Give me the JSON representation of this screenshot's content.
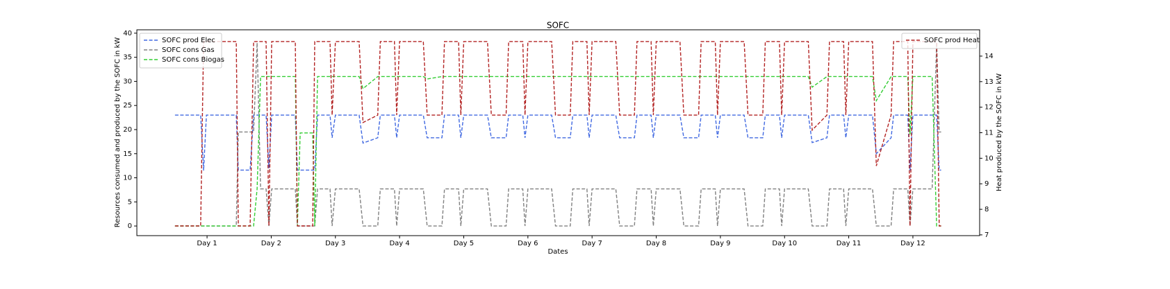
{
  "chart_data": {
    "type": "line",
    "title": "SOFC",
    "xlabel": "Dates",
    "ylabel": "Resources consumed and produced by the SOFC in kW",
    "y2label": "Heat produced by the SOFC in kW",
    "x": [
      0.5,
      0.9,
      0.946,
      0.99,
      1.455,
      1.487,
      1.671,
      1.725,
      1.78,
      1.834,
      1.92,
      1.964,
      2.007,
      2.375,
      2.408,
      2.451,
      2.646,
      2.678,
      2.722,
      2.916,
      2.949,
      3,
      3.37,
      3.43,
      3.66,
      3.7,
      3.92,
      3.955,
      4,
      4.37,
      4.43,
      4.66,
      4.7,
      4.92,
      4.955,
      5,
      5.37,
      5.43,
      5.66,
      5.7,
      5.92,
      5.955,
      6,
      6.37,
      6.43,
      6.66,
      6.7,
      6.92,
      6.955,
      7,
      7.37,
      7.43,
      7.66,
      7.7,
      7.92,
      7.955,
      8,
      8.37,
      8.43,
      8.66,
      8.7,
      8.92,
      8.955,
      9,
      9.37,
      9.43,
      9.66,
      9.7,
      9.92,
      9.955,
      10,
      10.37,
      10.43,
      10.66,
      10.7,
      10.92,
      10.955,
      11,
      11.37,
      11.43,
      11.66,
      11.7,
      11.92,
      11.955,
      12,
      12.3,
      12.37,
      12.41,
      12.44
    ],
    "series": [
      {
        "name": "SOFC prod Elec",
        "color": "#4169e1",
        "axis": "y",
        "values": [
          23,
          23,
          11.5,
          23,
          23,
          11.6,
          11.6,
          23,
          23,
          23,
          23,
          12,
          23,
          23,
          11.6,
          11.6,
          11.6,
          11.6,
          23,
          23,
          18.3,
          23,
          23,
          17.2,
          18.3,
          23,
          23,
          18.3,
          23,
          23,
          18.3,
          18.3,
          23,
          23,
          18.3,
          23,
          23,
          18.3,
          18.3,
          23,
          23,
          18.3,
          23,
          23,
          18.3,
          18.3,
          23,
          23,
          18.3,
          23,
          23,
          18.3,
          18.3,
          23,
          23,
          18.3,
          23,
          23,
          18.3,
          18.3,
          23,
          23,
          18.3,
          23,
          23,
          18.3,
          18.3,
          23,
          23,
          18.3,
          23,
          23,
          17.3,
          18.3,
          23,
          23,
          18.3,
          23,
          23,
          15,
          18.3,
          23,
          23,
          11.5,
          23,
          23,
          23,
          11.6,
          11.6
        ]
      },
      {
        "name": "SOFC cons Gas",
        "color": "#808080",
        "axis": "y",
        "values": [
          0,
          0,
          0,
          0,
          0,
          19.5,
          19.5,
          19.5,
          38,
          7.7,
          7.7,
          0,
          7.7,
          7.7,
          0,
          0,
          0,
          0,
          7.7,
          7.7,
          0,
          7.7,
          7.7,
          0,
          0,
          7.7,
          7.7,
          0,
          7.7,
          7.7,
          0,
          0,
          7.7,
          7.7,
          0,
          7.7,
          7.7,
          0,
          0,
          7.7,
          7.7,
          0,
          7.7,
          7.7,
          0,
          0,
          7.7,
          7.7,
          0,
          7.7,
          7.7,
          0,
          0,
          7.7,
          7.7,
          0,
          7.7,
          7.7,
          0,
          0,
          7.7,
          7.7,
          0,
          7.7,
          7.7,
          0,
          0,
          7.7,
          7.7,
          0,
          7.7,
          7.7,
          0,
          0,
          7.7,
          7.7,
          0,
          7.7,
          7.7,
          0,
          0,
          7.7,
          7.7,
          0,
          7.7,
          7.7,
          38,
          19.5,
          19.5
        ]
      },
      {
        "name": "SOFC cons Biogas",
        "color": "#32cd32",
        "axis": "y",
        "values": [
          0,
          0,
          0,
          0,
          0,
          0,
          0,
          0,
          7.7,
          31,
          31,
          31,
          31,
          31,
          0,
          19.3,
          19.3,
          0,
          31,
          31,
          31,
          31,
          31,
          28.5,
          31,
          31,
          31,
          31,
          31,
          31,
          30.5,
          31,
          31,
          31,
          31,
          31,
          31,
          31,
          31,
          31,
          31,
          31,
          31,
          31,
          31,
          31,
          31,
          31,
          31,
          31,
          31,
          31,
          31,
          31,
          31,
          31,
          31,
          31,
          31,
          31,
          31,
          31,
          31,
          31,
          31,
          31,
          31,
          31,
          31,
          31,
          31,
          31,
          28.8,
          31,
          31,
          31,
          31,
          31,
          31,
          26,
          31,
          31,
          31,
          19,
          31,
          31,
          0,
          0,
          0
        ]
      },
      {
        "name": "SOFC prod Heat",
        "color": "#b22222",
        "axis": "y2",
        "values": [
          7.35,
          7.35,
          14.57,
          14.57,
          14.57,
          7.35,
          7.35,
          14.57,
          14.57,
          14.57,
          14.57,
          7.35,
          14.57,
          14.57,
          7.35,
          7.35,
          7.35,
          14.57,
          14.57,
          14.57,
          11.69,
          14.57,
          14.57,
          11.4,
          11.69,
          14.57,
          14.57,
          11.69,
          14.57,
          14.57,
          11.69,
          11.69,
          14.57,
          14.57,
          11.69,
          14.57,
          14.57,
          11.69,
          11.69,
          14.57,
          14.57,
          11.69,
          14.57,
          14.57,
          11.69,
          11.69,
          14.57,
          14.57,
          11.69,
          14.57,
          14.57,
          11.69,
          11.69,
          14.57,
          14.57,
          11.69,
          14.57,
          14.57,
          11.69,
          11.69,
          14.57,
          14.57,
          11.69,
          14.57,
          14.57,
          11.69,
          11.69,
          14.57,
          14.57,
          11.69,
          14.57,
          14.57,
          11.1,
          11.69,
          14.57,
          14.57,
          11.69,
          14.57,
          14.57,
          9.7,
          11.69,
          14.57,
          14.57,
          7.35,
          14.57,
          14.57,
          14.57,
          7.35,
          7.35
        ]
      }
    ],
    "xlim": [
      -0.094,
      13.04
    ],
    "xticks": [
      {
        "value": 1,
        "label": "Day 1"
      },
      {
        "value": 2,
        "label": "Day 2"
      },
      {
        "value": 3,
        "label": "Day 3"
      },
      {
        "value": 4,
        "label": "Day 4"
      },
      {
        "value": 5,
        "label": "Day 5"
      },
      {
        "value": 6,
        "label": "Day 6"
      },
      {
        "value": 7,
        "label": "Day 7"
      },
      {
        "value": 8,
        "label": "Day 8"
      },
      {
        "value": 9,
        "label": "Day 9"
      },
      {
        "value": 10,
        "label": "Day 10"
      },
      {
        "value": 11,
        "label": "Day 11"
      },
      {
        "value": 12,
        "label": "Day 12"
      }
    ],
    "ylim": [
      -2,
      40.7
    ],
    "yticks": [
      0,
      5,
      10,
      15,
      20,
      25,
      30,
      35,
      40
    ],
    "y2lim": [
      6.97,
      15.03
    ],
    "y2ticks": [
      7,
      8,
      9,
      10,
      11,
      12,
      13,
      14
    ],
    "legend": "upper left",
    "legend2": "upper right",
    "grid": false
  }
}
